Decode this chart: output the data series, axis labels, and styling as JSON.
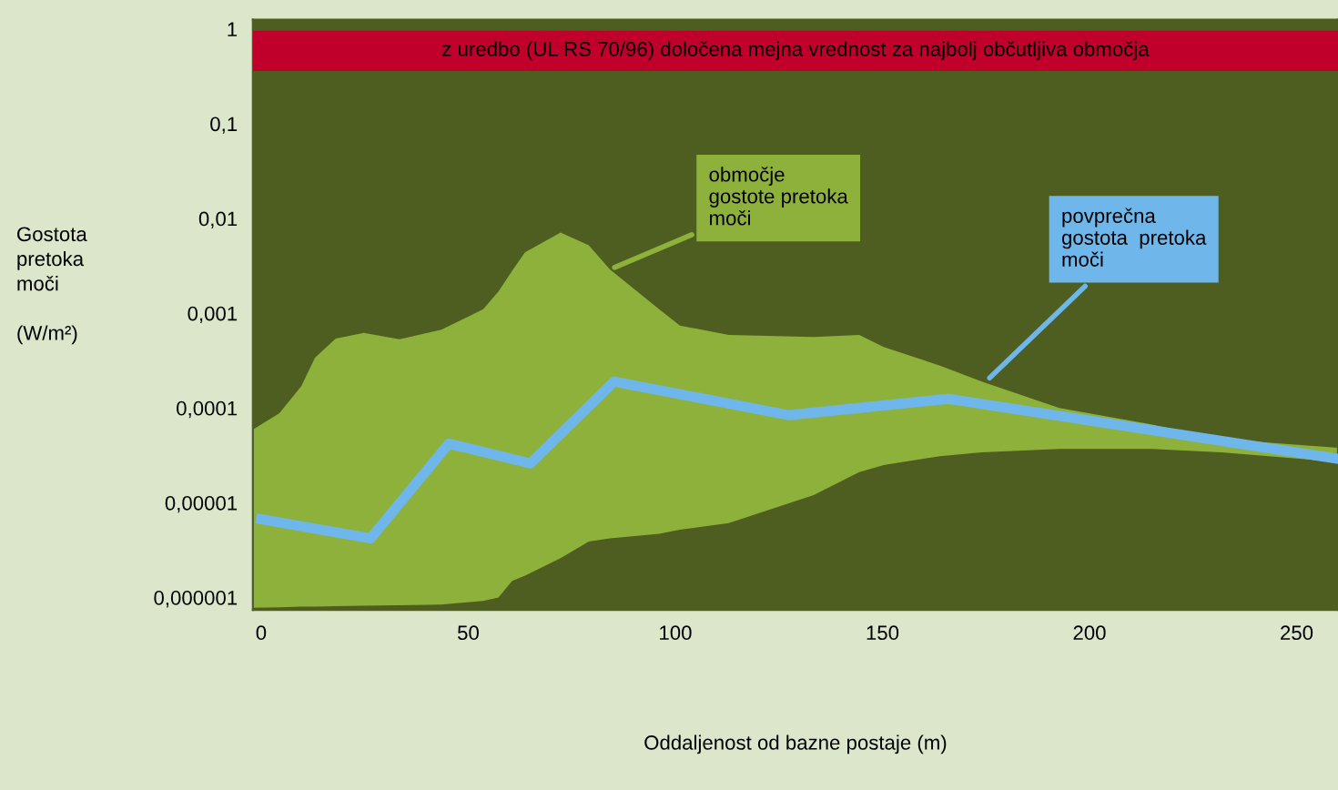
{
  "chart_data": {
    "type": "area",
    "xlabel": "Oddaljenost od bazne postaje (m)",
    "ylabel": "Gostota\npretoka\nmoči\n\n(W/m²)",
    "log": "y",
    "xlim": [
      -2,
      260
    ],
    "xticks": [
      0,
      50,
      100,
      150,
      200,
      250
    ],
    "ylim": [
      7.4e-07,
      1.25
    ],
    "yticks": [
      {
        "value": 1,
        "label": "1"
      },
      {
        "value": 0.1,
        "label": "0,1"
      },
      {
        "value": 0.01,
        "label": "0,01"
      },
      {
        "value": 0.001,
        "label": "0,001"
      },
      {
        "value": 0.0001,
        "label": "0,0001"
      },
      {
        "value": 1e-05,
        "label": "0,00001"
      },
      {
        "value": 1e-06,
        "label": "0,000001"
      }
    ],
    "grid": false,
    "bands": [
      {
        "axis": "y",
        "from": 0.36,
        "to": 0.96,
        "label": "z uredbo (UL RS 70/96) določena mejna vrednost za najbolj občutljiva območja",
        "color": "#c0002a"
      }
    ],
    "series": [
      {
        "color": "#8db13a",
        "x": [
          -2,
          4.4,
          9.7,
          13,
          18,
          24.8,
          33.4,
          43.5,
          53.6,
          57.3,
          60.6,
          63.7,
          72.3,
          79.1,
          84.2,
          96.1,
          101.1,
          112.9,
          133.4,
          144.4,
          150.3,
          163.9,
          174,
          192.7,
          214.9,
          231.8,
          260
        ],
        "values": [
          5.9e-05,
          8.8e-05,
          0.00017,
          0.00034,
          0.00054,
          0.00062,
          0.00053,
          0.00067,
          0.0011,
          0.0017,
          0.0028,
          0.0044,
          0.0071,
          0.0052,
          0.0029,
          0.0011,
          0.00074,
          0.00059,
          0.00056,
          0.00059,
          0.00044,
          0.00028,
          0.00019,
          0.0001,
          6.7e-05,
          4.7e-05,
          3.8e-05
        ]
      },
      {
        "color": "#4d5e20",
        "x": [
          -2,
          4.4,
          9.7,
          13,
          18,
          24.8,
          33.4,
          43.5,
          53.6,
          57.3,
          60.6,
          63.7,
          72.3,
          79.1,
          84.2,
          96.1,
          101.1,
          112.9,
          133.4,
          144.4,
          150.3,
          163.9,
          174,
          192.7,
          214.9,
          231.8,
          260
        ],
        "values": [
          7.8e-07,
          7.9e-07,
          8e-07,
          8e-07,
          8.1e-07,
          8.2e-07,
          8.3e-07,
          8.4e-07,
          9.2e-07,
          1e-06,
          1.5e-06,
          1.7e-06,
          2.6e-06,
          3.9e-06,
          4.2e-06,
          4.7e-06,
          5.2e-06,
          6.1e-06,
          1.2e-05,
          2.1e-05,
          2.5e-05,
          3.1e-05,
          3.4e-05,
          3.7e-05,
          3.7e-05,
          3.4e-05,
          2.7e-05
        ]
      },
      {
        "type": "line",
        "color": "#6fb7ea",
        "x": [
          0,
          26.4,
          45.3,
          65,
          85.2,
          127.4,
          166,
          260
        ],
        "values": [
          6.7e-06,
          4.2e-06,
          4.2e-05,
          2.6e-05,
          0.00019,
          8.4e-05,
          0.000125,
          2.9e-05
        ]
      }
    ],
    "annotations": [
      {
        "text": "območje\ngostote pretoka\nmoči",
        "x": 84.2,
        "y": 0.0029
      },
      {
        "text": "povprečna\ngostota  pretoka\nmoči",
        "x": 175,
        "y": 0.00019
      }
    ]
  }
}
